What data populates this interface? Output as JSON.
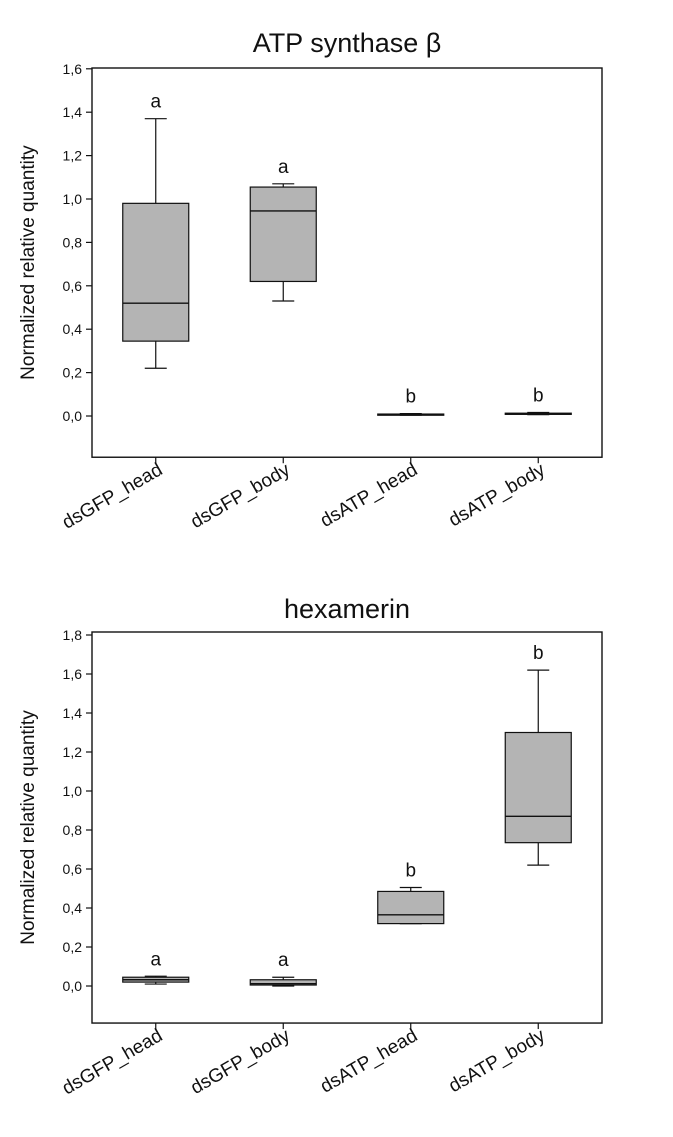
{
  "chart_data": [
    {
      "type": "box",
      "title": "ATP synthase β",
      "xlabel": "",
      "ylabel": "Normalized relative quantity",
      "ylim": [
        -0.19,
        1.6
      ],
      "yticks": [
        "0,0",
        "0,2",
        "0,4",
        "0,6",
        "0,8",
        "1,0",
        "1,2",
        "1,4",
        "1,6"
      ],
      "grid": false,
      "categories": [
        "dsGFP_head",
        "dsGFP_body",
        "dsATP_head",
        "dsATP_body"
      ],
      "boxes": [
        {
          "min": 0.22,
          "q1": 0.345,
          "median": 0.52,
          "q3": 0.98,
          "max": 1.37,
          "annotation": "a"
        },
        {
          "min": 0.53,
          "q1": 0.62,
          "median": 0.945,
          "q3": 1.055,
          "max": 1.07,
          "annotation": "a"
        },
        {
          "min": 0.004,
          "q1": 0.006,
          "median": 0.007,
          "q3": 0.009,
          "max": 0.011,
          "annotation": "b"
        },
        {
          "min": 0.006,
          "q1": 0.008,
          "median": 0.01,
          "q3": 0.013,
          "max": 0.016,
          "annotation": "b"
        }
      ]
    },
    {
      "type": "box",
      "title": "hexamerin",
      "xlabel": "",
      "ylabel": "Normalized relative quantity",
      "ylim": [
        -0.19,
        1.8
      ],
      "yticks": [
        "0,0",
        "0,2",
        "0,4",
        "0,6",
        "0,8",
        "1,0",
        "1,2",
        "1,4",
        "1,6",
        "1,8"
      ],
      "grid": false,
      "categories": [
        "dsGFP_head",
        "dsGFP_body",
        "dsATP_head",
        "dsATP_body"
      ],
      "boxes": [
        {
          "min": 0.01,
          "q1": 0.02,
          "median": 0.032,
          "q3": 0.045,
          "max": 0.05,
          "annotation": "a"
        },
        {
          "min": 0.0,
          "q1": 0.005,
          "median": 0.012,
          "q3": 0.032,
          "max": 0.045,
          "annotation": "a"
        },
        {
          "min": 0.32,
          "q1": 0.32,
          "median": 0.365,
          "q3": 0.485,
          "max": 0.505,
          "annotation": "b"
        },
        {
          "min": 0.62,
          "q1": 0.735,
          "median": 0.87,
          "q3": 1.3,
          "max": 1.62,
          "annotation": "b"
        }
      ]
    }
  ]
}
